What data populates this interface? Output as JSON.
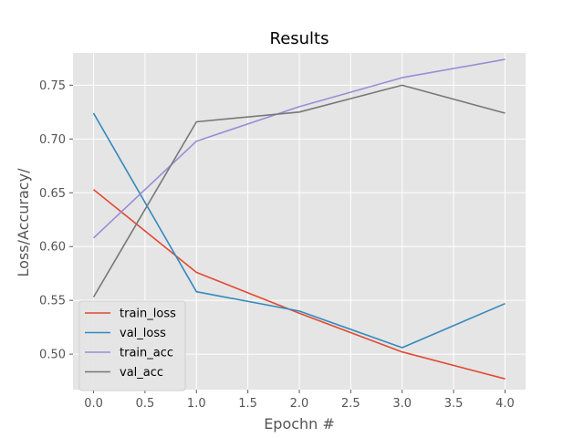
{
  "chart_data": {
    "type": "line",
    "title": "Results",
    "xlabel": "Epochn #",
    "ylabel": "Loss/Accuracy/",
    "x": [
      0,
      1,
      2,
      3,
      4
    ],
    "xlim": [
      -0.2,
      4.2
    ],
    "ylim": [
      0.467,
      0.78
    ],
    "xticks": [
      "0.0",
      "0.5",
      "1.0",
      "1.5",
      "2.0",
      "2.5",
      "3.0",
      "3.5",
      "4.0"
    ],
    "yticks": [
      "0.50",
      "0.55",
      "0.60",
      "0.65",
      "0.70",
      "0.75"
    ],
    "grid": true,
    "legend_position": "lower-left",
    "series": [
      {
        "name": "train_loss",
        "color": "#E24A33",
        "values": [
          0.653,
          0.576,
          0.538,
          0.502,
          0.477
        ]
      },
      {
        "name": "val_loss",
        "color": "#348ABD",
        "values": [
          0.724,
          0.558,
          0.54,
          0.506,
          0.547
        ]
      },
      {
        "name": "train_acc",
        "color": "#988ED5",
        "values": [
          0.608,
          0.698,
          0.73,
          0.757,
          0.774
        ]
      },
      {
        "name": "val_acc",
        "color": "#777777",
        "values": [
          0.553,
          0.716,
          0.725,
          0.75,
          0.724
        ]
      }
    ]
  }
}
